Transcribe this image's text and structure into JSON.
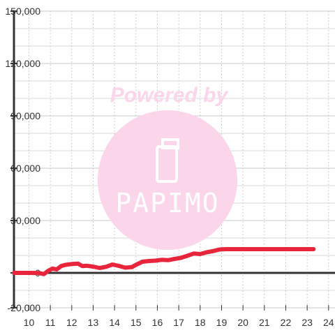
{
  "chart_data": {
    "type": "line",
    "title": "",
    "xlabel": "",
    "ylabel": "",
    "xlim": [
      9.3,
      24.3
    ],
    "ylim": [
      -20000,
      150000
    ],
    "x_ticks": [
      10,
      11,
      12,
      13,
      14,
      15,
      16,
      17,
      18,
      19,
      20,
      21,
      22,
      23,
      24
    ],
    "x_tick_labels": [
      "10",
      "11",
      "12",
      "13",
      "14",
      "15",
      "16",
      "17",
      "18",
      "19",
      "20",
      "21",
      "22",
      "23",
      "24"
    ],
    "y_ticks": [
      -20000,
      0,
      30000,
      60000,
      90000,
      120000,
      150000
    ],
    "y_tick_labels": [
      "-20,000",
      "0",
      "30,000",
      "60,000",
      "90,000",
      "120,000",
      "150,000"
    ],
    "grid": true,
    "legend": "none",
    "series": [
      {
        "color": "#e8253a",
        "x": [
          9.3,
          10.0,
          10.5,
          10.7,
          10.9,
          11.1,
          11.3,
          11.5,
          11.7,
          12.0,
          12.3,
          12.5,
          12.7,
          13.0,
          13.3,
          13.6,
          13.9,
          14.2,
          14.5,
          14.8,
          15.0,
          15.3,
          15.6,
          15.9,
          16.2,
          16.5,
          16.8,
          17.1,
          17.4,
          17.7,
          18.0,
          18.3,
          18.6,
          18.9,
          19.2,
          20.0,
          21.0,
          22.0,
          23.0,
          23.3
        ],
        "y": [
          0,
          0,
          -100,
          -700,
          1200,
          2500,
          2000,
          3900,
          4600,
          5100,
          5300,
          3900,
          4100,
          3600,
          2800,
          3500,
          4800,
          4000,
          3000,
          3300,
          4600,
          6400,
          6800,
          7000,
          7500,
          7300,
          8000,
          8600,
          9800,
          11100,
          10800,
          11800,
          12500,
          13400,
          13600,
          13600,
          13600,
          13600,
          13600,
          13600
        ]
      }
    ]
  },
  "watermark": {
    "text_top": "Powered by",
    "brand": "PAPIMO",
    "circle_color": "#fbd5ea",
    "text_color": "#fbd5ea",
    "brand_color": "#ffffff"
  }
}
